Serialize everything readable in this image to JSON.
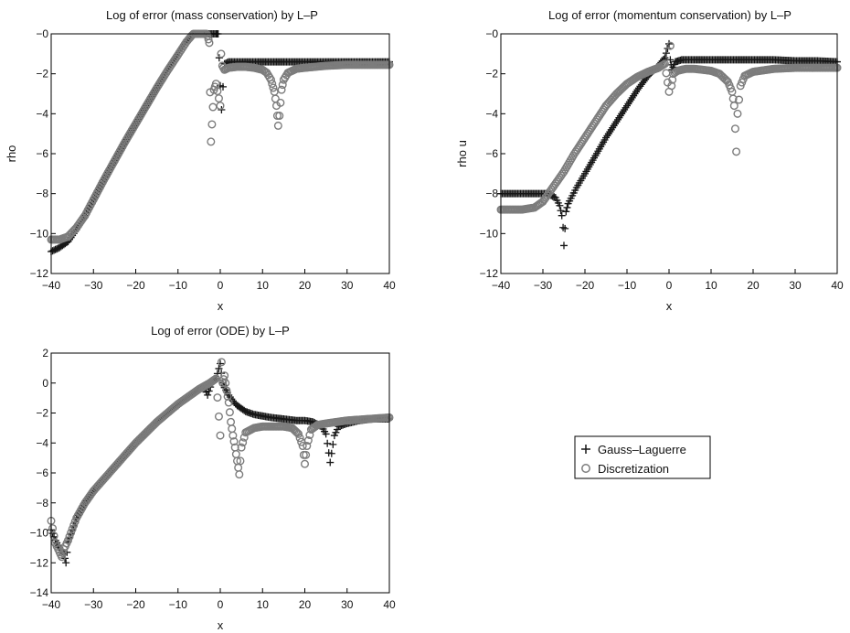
{
  "colors": {
    "gauss": "#161616",
    "disc": "#7c7c7c",
    "axes": "#000000"
  },
  "legend": {
    "entries": [
      {
        "label": "Gauss–Laguerre",
        "marker": "plus",
        "color": "#161616"
      },
      {
        "label": "Discretization",
        "marker": "circle",
        "color": "#7c7c7c"
      }
    ]
  },
  "chart_data": [
    {
      "type": "scatter",
      "title": "Log of error (mass conservation) by L–P",
      "xlabel": "x",
      "ylabel": "rho",
      "xlim": [
        -40,
        40
      ],
      "ylim": [
        -12,
        0
      ],
      "xticks": [
        -40,
        -30,
        -20,
        -10,
        0,
        10,
        20,
        30,
        40
      ],
      "yticks": [
        -12,
        -10,
        -8,
        -6,
        -4,
        -2,
        0
      ],
      "ytick_labels": [
        "−12",
        "−10",
        "−8",
        "−6",
        "−4",
        "−2",
        "−0"
      ],
      "grid": false,
      "series": [
        {
          "name": "Gauss–Laguerre",
          "marker": "plus",
          "x": [
            -40,
            -38,
            -36,
            -34,
            -32,
            -30,
            -27.5,
            -25,
            -22.5,
            -20,
            -17.5,
            -15,
            -12.5,
            -10,
            -8,
            -6,
            -4,
            -3,
            -2,
            -1,
            -0.5,
            0,
            0.3,
            1,
            2,
            4,
            6,
            8,
            10,
            12,
            14,
            16,
            20,
            25,
            30,
            35,
            40
          ],
          "y": [
            -10.9,
            -10.7,
            -10.4,
            -9.8,
            -9.1,
            -8.3,
            -7.3,
            -6.35,
            -5.4,
            -4.5,
            -3.6,
            -2.7,
            -1.8,
            -1.0,
            -0.35,
            0.2,
            0.55,
            0.7,
            0.8,
            0.85,
            0.2,
            -2.6,
            -3.8,
            -1.5,
            -1.4,
            -1.4,
            -1.4,
            -1.4,
            -1.4,
            -1.4,
            -1.4,
            -1.4,
            -1.4,
            -1.4,
            -1.4,
            -1.4,
            -1.4
          ]
        },
        {
          "name": "Discretization",
          "marker": "circle",
          "x": [
            -40,
            -38,
            -36,
            -34,
            -32,
            -30,
            -27.5,
            -25,
            -22.5,
            -20,
            -17.5,
            -15,
            -12.5,
            -10,
            -8,
            -6,
            -5,
            -4,
            -3.5,
            -3,
            -2.6,
            -2.2,
            -1.5,
            -1,
            0,
            0.2,
            0.5,
            1,
            2,
            4,
            6,
            8,
            10,
            11,
            12,
            12.8,
            13.3,
            13.7,
            14,
            14.5,
            15,
            16,
            18,
            20,
            25,
            30,
            35,
            40
          ],
          "y": [
            -10.3,
            -10.3,
            -10.15,
            -9.7,
            -9.1,
            -8.3,
            -7.3,
            -6.35,
            -5.4,
            -4.5,
            -3.6,
            -2.7,
            -1.85,
            -1.05,
            -0.4,
            0.1,
            0.3,
            0.25,
            0.15,
            -0.1,
            -0.45,
            -5.4,
            -2.8,
            -2.5,
            -3.6,
            -1.0,
            -1.6,
            -1.8,
            -1.7,
            -1.65,
            -1.65,
            -1.7,
            -1.8,
            -1.95,
            -2.3,
            -2.9,
            -3.6,
            -4.6,
            -4.1,
            -2.8,
            -2.3,
            -1.95,
            -1.75,
            -1.7,
            -1.6,
            -1.55,
            -1.55,
            -1.55
          ]
        }
      ]
    },
    {
      "type": "scatter",
      "title": "Log of error (momentum conservation) by L–P",
      "xlabel": "x",
      "ylabel": "rho u",
      "xlim": [
        -40,
        40
      ],
      "ylim": [
        -12,
        0
      ],
      "xticks": [
        -40,
        -30,
        -20,
        -10,
        0,
        10,
        20,
        30,
        40
      ],
      "yticks": [
        -12,
        -10,
        -8,
        -6,
        -4,
        -2,
        0
      ],
      "ytick_labels": [
        "−12",
        "−10",
        "−8",
        "−6",
        "−4",
        "−2",
        "−0"
      ],
      "grid": false,
      "series": [
        {
          "name": "Gauss–Laguerre",
          "marker": "plus",
          "x": [
            -40,
            -36,
            -32,
            -29,
            -27,
            -26,
            -25.5,
            -25.2,
            -25,
            -24.5,
            -24,
            -22,
            -20,
            -17.5,
            -15,
            -12.5,
            -10,
            -7.5,
            -5,
            -2.5,
            -1,
            0,
            0.3,
            0.7,
            1.5,
            3,
            6,
            10,
            15,
            20,
            25,
            30,
            35,
            40
          ],
          "y": [
            -8.0,
            -8.0,
            -8.0,
            -8.0,
            -8.2,
            -8.6,
            -9.1,
            -9.7,
            -10.6,
            -8.9,
            -8.5,
            -7.7,
            -7.0,
            -6.1,
            -5.2,
            -4.4,
            -3.6,
            -2.8,
            -2.1,
            -1.6,
            -1.2,
            -0.5,
            -1.3,
            -1.8,
            -1.4,
            -1.3,
            -1.3,
            -1.3,
            -1.3,
            -1.3,
            -1.3,
            -1.35,
            -1.35,
            -1.4
          ]
        },
        {
          "name": "Discretization",
          "marker": "circle",
          "x": [
            -40,
            -35,
            -32,
            -30,
            -28,
            -25,
            -22.5,
            -20,
            -17.5,
            -15,
            -12.5,
            -10,
            -7.5,
            -5,
            -2.5,
            -1,
            0,
            0.3,
            0.6,
            1,
            2,
            4,
            6,
            8,
            10,
            12,
            14,
            15,
            15.5,
            16,
            16.3,
            17,
            18,
            20,
            25,
            30,
            35,
            40
          ],
          "y": [
            -8.8,
            -8.8,
            -8.7,
            -8.4,
            -7.8,
            -6.9,
            -6.0,
            -5.2,
            -4.4,
            -3.6,
            -3.0,
            -2.5,
            -2.15,
            -1.9,
            -1.7,
            -1.5,
            -2.9,
            -0.6,
            -2.6,
            -2.0,
            -1.85,
            -1.75,
            -1.75,
            -1.8,
            -1.85,
            -2.0,
            -2.4,
            -2.9,
            -3.6,
            -5.9,
            -4.0,
            -2.6,
            -2.1,
            -1.9,
            -1.75,
            -1.7,
            -1.7,
            -1.7
          ]
        }
      ]
    },
    {
      "type": "scatter",
      "title": "Log of error (ODE) by L–P",
      "xlabel": "x",
      "ylabel": "",
      "xlim": [
        -40,
        40
      ],
      "ylim": [
        -14,
        2
      ],
      "xticks": [
        -40,
        -30,
        -20,
        -10,
        0,
        10,
        20,
        30,
        40
      ],
      "yticks": [
        -14,
        -12,
        -10,
        -8,
        -6,
        -4,
        -2,
        0,
        2
      ],
      "ytick_labels": [
        "−14",
        "−12",
        "−10",
        "−8",
        "−6",
        "−4",
        "−2",
        "0",
        "2"
      ],
      "grid": false,
      "series": [
        {
          "name": "Gauss–Laguerre",
          "marker": "plus",
          "x": [
            -40,
            -39,
            -38,
            -37,
            -36.5,
            -36,
            -34,
            -32,
            -30,
            -27.5,
            -25,
            -22.5,
            -20,
            -17.5,
            -15,
            -12.5,
            -10,
            -8,
            -6,
            -4,
            -3,
            -2,
            -1,
            0,
            0.5,
            1,
            2,
            3,
            4,
            5,
            6,
            7,
            8,
            10,
            12,
            15,
            18,
            20,
            22,
            24,
            25,
            26,
            27,
            28,
            30,
            33,
            36,
            40
          ],
          "y": [
            -9.8,
            -10.5,
            -11.0,
            -11.4,
            -12.0,
            -10.6,
            -9.0,
            -8.0,
            -7.2,
            -6.4,
            -5.6,
            -4.8,
            -4.0,
            -3.3,
            -2.6,
            -2.0,
            -1.5,
            -1.0,
            -0.6,
            -0.2,
            -0.8,
            0.0,
            0.3,
            1.3,
            0.0,
            -0.3,
            -0.8,
            -1.2,
            -1.5,
            -1.7,
            -1.9,
            -2.0,
            -2.1,
            -2.2,
            -2.3,
            -2.4,
            -2.5,
            -2.5,
            -2.6,
            -2.9,
            -3.4,
            -5.3,
            -3.5,
            -2.9,
            -2.7,
            -2.5,
            -2.4,
            -2.4
          ]
        },
        {
          "name": "Discretization",
          "marker": "circle",
          "x": [
            -40,
            -39,
            -38,
            -37.5,
            -37,
            -36,
            -34,
            -32,
            -30,
            -27.5,
            -25,
            -22.5,
            -20,
            -17.5,
            -15,
            -12.5,
            -10,
            -7.5,
            -5,
            -2.5,
            -1,
            0,
            0.3,
            0.6,
            1,
            1.5,
            2,
            2.5,
            3,
            3.5,
            4,
            4.5,
            5,
            6,
            8,
            10,
            12,
            15,
            17,
            18.5,
            19.5,
            20,
            20.5,
            21.5,
            23,
            25,
            30,
            35,
            40
          ],
          "y": [
            -9.2,
            -10.7,
            -11.3,
            -11.6,
            -11.1,
            -10.5,
            -9.0,
            -8.0,
            -7.2,
            -6.4,
            -5.6,
            -4.8,
            -4.0,
            -3.3,
            -2.6,
            -2.0,
            -1.4,
            -0.9,
            -0.4,
            0.0,
            0.3,
            -3.5,
            1.4,
            0.0,
            0.5,
            -0.5,
            -1.3,
            -2.6,
            -3.5,
            -4.3,
            -5.2,
            -6.1,
            -4.3,
            -3.3,
            -3.0,
            -2.9,
            -2.9,
            -2.9,
            -3.0,
            -3.4,
            -4.2,
            -5.4,
            -4.2,
            -3.1,
            -2.8,
            -2.7,
            -2.5,
            -2.4,
            -2.3
          ]
        }
      ]
    }
  ]
}
